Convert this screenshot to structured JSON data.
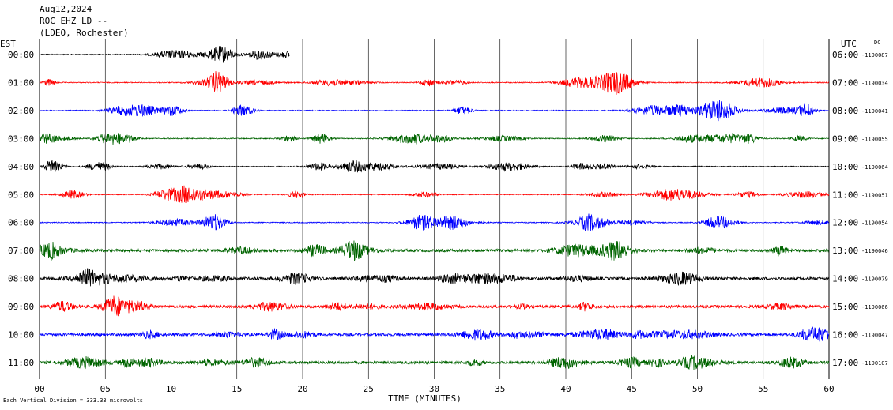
{
  "header": {
    "date": "Aug12,2024",
    "station": "ROC EHZ LD --",
    "network": "(LDEO, Rochester)"
  },
  "chart_data": {
    "type": "line",
    "title": "Aug12,2024",
    "xlabel": "TIME (MINUTES)",
    "left_axis_label": "EST",
    "right_axis_label": "UTC",
    "dc_label": "DC",
    "scale_note": "Each Vertical Division = 333.33 microvolts",
    "xlim": [
      0,
      60
    ],
    "x_ticks": [
      "00",
      "05",
      "10",
      "15",
      "20",
      "25",
      "30",
      "35",
      "40",
      "45",
      "50",
      "55",
      "60"
    ],
    "grid": "vertical every 5 minutes",
    "trace_colors": [
      "#000000",
      "#ff0000",
      "#0000ff",
      "#006400"
    ],
    "rows": [
      {
        "est": "00:00",
        "utc": "06:00",
        "dc": "-1190087",
        "color": "#000000",
        "data_end_min": 19.0
      },
      {
        "est": "01:00",
        "utc": "07:00",
        "dc": "-1190034",
        "color": "#ff0000"
      },
      {
        "est": "02:00",
        "utc": "08:00",
        "dc": "-1190041",
        "color": "#0000ff"
      },
      {
        "est": "03:00",
        "utc": "09:00",
        "dc": "-1190055",
        "color": "#006400"
      },
      {
        "est": "04:00",
        "utc": "10:00",
        "dc": "-1190064",
        "color": "#000000"
      },
      {
        "est": "05:00",
        "utc": "11:00",
        "dc": "-1190051",
        "color": "#ff0000"
      },
      {
        "est": "06:00",
        "utc": "12:00",
        "dc": "-1190054",
        "color": "#0000ff"
      },
      {
        "est": "07:00",
        "utc": "13:00",
        "dc": "-1190046",
        "color": "#006400"
      },
      {
        "est": "08:00",
        "utc": "14:00",
        "dc": "-1190079",
        "color": "#000000"
      },
      {
        "est": "09:00",
        "utc": "15:00",
        "dc": "-1190066",
        "color": "#ff0000"
      },
      {
        "est": "10:00",
        "utc": "16:00",
        "dc": "-1190047",
        "color": "#0000ff"
      },
      {
        "est": "11:00",
        "utc": "17:00",
        "dc": "-1190107",
        "color": "#006400"
      }
    ]
  }
}
